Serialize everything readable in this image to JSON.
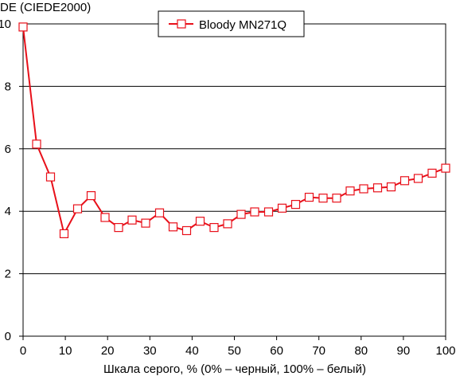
{
  "chart_data": {
    "type": "line",
    "title": "",
    "ylabel": "DE (CIEDE2000)",
    "xlabel": "Шкала серого, % (0% – черный, 100% – белый)",
    "xlim": [
      0,
      100
    ],
    "ylim": [
      0,
      10
    ],
    "x_ticks": [
      0,
      10,
      20,
      30,
      40,
      50,
      60,
      70,
      80,
      90,
      100
    ],
    "y_ticks": [
      0,
      2,
      4,
      6,
      8,
      10
    ],
    "grid": "horizontal",
    "legend_position": "top-center",
    "series": [
      {
        "name": "Bloody MN271Q",
        "color": "#e8101a",
        "marker": "square",
        "x": [
          0,
          3.2,
          6.5,
          9.7,
          12.9,
          16.1,
          19.4,
          22.6,
          25.8,
          29.0,
          32.3,
          35.5,
          38.7,
          41.9,
          45.2,
          48.4,
          51.6,
          54.8,
          58.1,
          61.3,
          64.5,
          67.7,
          71.0,
          74.2,
          77.4,
          80.6,
          83.9,
          87.1,
          90.3,
          93.5,
          96.8,
          100
        ],
        "y": [
          9.9,
          6.15,
          5.1,
          3.28,
          4.08,
          4.5,
          3.8,
          3.48,
          3.72,
          3.62,
          3.95,
          3.5,
          3.38,
          3.68,
          3.48,
          3.6,
          3.9,
          3.98,
          3.98,
          4.1,
          4.22,
          4.45,
          4.42,
          4.42,
          4.65,
          4.72,
          4.75,
          4.78,
          4.98,
          5.05,
          5.22,
          5.38
        ]
      }
    ]
  }
}
